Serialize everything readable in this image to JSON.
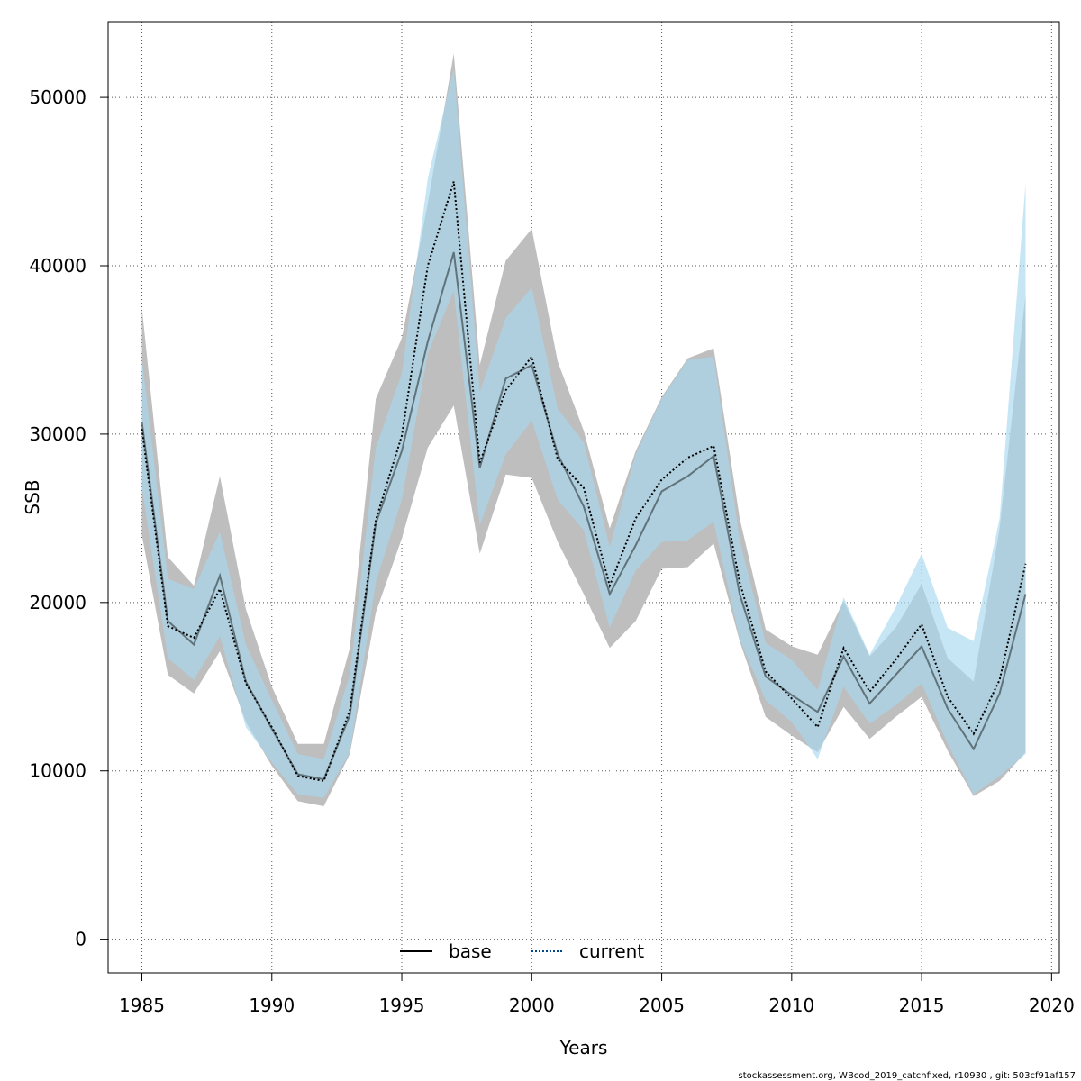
{
  "chart_data": {
    "type": "line",
    "title": "",
    "xlabel": "Years",
    "ylabel": "SSB",
    "xlim": [
      1983.7,
      2020.3
    ],
    "ylim": [
      -2000,
      54500
    ],
    "x_ticks": [
      1985,
      1990,
      1995,
      2000,
      2005,
      2010,
      2015,
      2020
    ],
    "y_ticks": [
      0,
      10000,
      20000,
      30000,
      40000,
      50000
    ],
    "grid": true,
    "legend_position": "bottom-center",
    "years": [
      1985,
      1986,
      1987,
      1988,
      1989,
      1990,
      1991,
      1992,
      1993,
      1994,
      1995,
      1996,
      1997,
      1998,
      1999,
      2000,
      2001,
      2002,
      2003,
      2004,
      2005,
      2006,
      2007,
      2008,
      2009,
      2010,
      2011,
      2012,
      2013,
      2014,
      2015,
      2016,
      2017,
      2018,
      2019
    ],
    "series": [
      {
        "name": "base",
        "color": "#000000",
        "band_color": "#bebebe",
        "line_style": "solid",
        "values": [
          30700,
          18900,
          17500,
          21600,
          15300,
          12500,
          9800,
          9500,
          13300,
          24700,
          29000,
          35500,
          40800,
          28000,
          33300,
          34100,
          28800,
          25700,
          20500,
          23400,
          26600,
          27500,
          28700,
          20500,
          15600,
          14500,
          13500,
          16800,
          14000,
          15700,
          17400,
          13700,
          11300,
          14600,
          20500
        ],
        "lower": [
          24000,
          15700,
          14600,
          17100,
          12900,
          10300,
          8200,
          7900,
          11000,
          19400,
          23800,
          29200,
          31700,
          22900,
          27600,
          27400,
          23600,
          20500,
          17300,
          18900,
          22000,
          22100,
          23500,
          17700,
          13200,
          12100,
          11100,
          13800,
          11900,
          13200,
          14400,
          11200,
          8500,
          9400,
          11100
        ],
        "upper": [
          37500,
          22700,
          21000,
          27500,
          19600,
          15000,
          11600,
          11600,
          17300,
          32100,
          35700,
          43700,
          52600,
          34100,
          40300,
          42200,
          34300,
          30200,
          24400,
          29000,
          32200,
          34500,
          35100,
          25000,
          18400,
          17400,
          16900,
          20100,
          16800,
          18500,
          21100,
          16700,
          15300,
          24400,
          38300
        ]
      },
      {
        "name": "current",
        "color": "#00468c",
        "band_color": "#a8d8f0",
        "line_style": "dotted",
        "values": [
          30300,
          18600,
          17900,
          20800,
          15200,
          12600,
          9700,
          9400,
          13600,
          24900,
          29900,
          40000,
          45000,
          28300,
          32600,
          34600,
          28500,
          26800,
          21000,
          25000,
          27300,
          28600,
          29300,
          21200,
          15900,
          14300,
          12600,
          17300,
          14700,
          16600,
          18700,
          14400,
          12200,
          15400,
          22300
        ],
        "lower": [
          26800,
          16700,
          15400,
          18000,
          12600,
          10500,
          8600,
          8400,
          11100,
          21200,
          26100,
          34800,
          38500,
          24600,
          28800,
          30800,
          26100,
          24300,
          18500,
          21900,
          23600,
          23700,
          24800,
          17800,
          14200,
          12900,
          10700,
          15000,
          12800,
          13900,
          15200,
          11600,
          8600,
          9700,
          11000
        ],
        "upper": [
          34500,
          21400,
          20800,
          24200,
          17500,
          14200,
          11000,
          10700,
          15700,
          29200,
          33600,
          45200,
          51700,
          32500,
          36900,
          38700,
          31500,
          29500,
          23300,
          28800,
          32100,
          34400,
          34600,
          23700,
          17600,
          16600,
          14800,
          20300,
          16900,
          19700,
          22900,
          18500,
          17700,
          25000,
          44900
        ]
      }
    ]
  },
  "footer": "stockassessment.org, WBcod_2019_catchfixed, r10930 , git: 503cf91af157"
}
